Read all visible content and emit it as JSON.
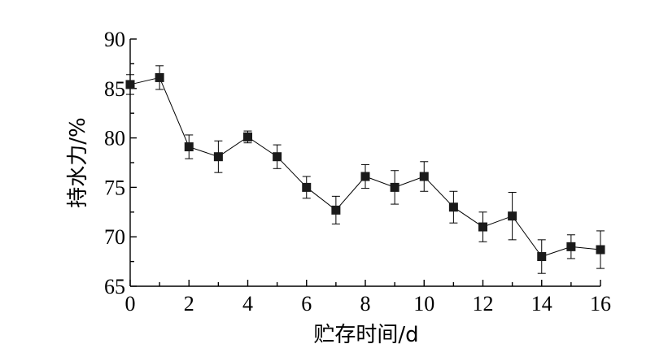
{
  "chart_data": {
    "type": "line",
    "xlabel": "贮存时间/d",
    "ylabel": "持水力/%",
    "xlim": [
      0,
      16
    ],
    "ylim": [
      65,
      90
    ],
    "xticks": [
      0,
      2,
      4,
      6,
      8,
      10,
      12,
      14,
      16
    ],
    "yticks": [
      65,
      70,
      75,
      80,
      85,
      90
    ],
    "grid": false,
    "marker": "square",
    "series": [
      {
        "x": [
          0,
          1,
          2,
          3,
          4,
          5,
          6,
          7,
          8,
          9,
          10,
          11,
          12,
          13,
          14,
          15,
          16
        ],
        "y": [
          85.4,
          86.1,
          79.1,
          78.1,
          80.1,
          78.1,
          75.0,
          72.7,
          76.1,
          75.0,
          76.1,
          73.0,
          71.0,
          72.1,
          68.0,
          69.0,
          68.7
        ],
        "error": [
          1.0,
          1.2,
          1.2,
          1.6,
          0.6,
          1.2,
          1.1,
          1.4,
          1.2,
          1.7,
          1.5,
          1.6,
          1.5,
          2.4,
          1.7,
          1.2,
          1.9
        ]
      }
    ]
  }
}
